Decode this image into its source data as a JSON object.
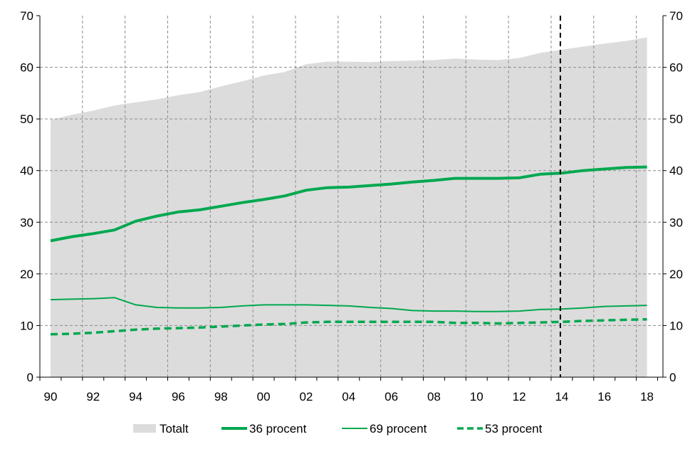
{
  "chart_data": {
    "type": "area",
    "x_tick_labels": [
      "90",
      "92",
      "94",
      "96",
      "98",
      "00",
      "02",
      "04",
      "06",
      "08",
      "10",
      "12",
      "14",
      "16",
      "18"
    ],
    "ylim": [
      0,
      70
    ],
    "y_ticks": [
      0,
      10,
      20,
      30,
      40,
      50,
      60,
      70
    ],
    "y_ticks_right": [
      0,
      10,
      20,
      30,
      40,
      50,
      60,
      70
    ],
    "grid": true,
    "legend_position": "bottom",
    "forecast_divider_x": 2014,
    "x": [
      1990,
      1991,
      1992,
      1993,
      1994,
      1995,
      1996,
      1997,
      1998,
      1999,
      2000,
      2001,
      2002,
      2003,
      2004,
      2005,
      2006,
      2007,
      2008,
      2009,
      2010,
      2011,
      2012,
      2013,
      2014,
      2015,
      2016,
      2017,
      2018
    ],
    "series": [
      {
        "name": "Totalt",
        "style": "area",
        "color": "#dcdcdc",
        "values": [
          49.8,
          50.8,
          51.6,
          52.6,
          53.2,
          53.8,
          54.6,
          55.2,
          56.3,
          57.3,
          58.4,
          59.1,
          60.6,
          61.1,
          61.1,
          61.0,
          61.2,
          61.3,
          61.4,
          61.7,
          61.5,
          61.4,
          61.8,
          62.8,
          63.4,
          64.0,
          64.6,
          65.1,
          65.8
        ]
      },
      {
        "name": "36 procent",
        "style": "thick-line",
        "color": "#00a84f",
        "values": [
          26.4,
          27.2,
          27.8,
          28.5,
          30.2,
          31.2,
          32.0,
          32.4,
          33.1,
          33.8,
          34.4,
          35.1,
          36.2,
          36.7,
          36.8,
          37.1,
          37.4,
          37.8,
          38.1,
          38.5,
          38.5,
          38.5,
          38.6,
          39.3,
          39.5,
          40.0,
          40.3,
          40.6,
          40.7
        ]
      },
      {
        "name": "69 procent",
        "style": "thin-line",
        "color": "#00a84f",
        "values": [
          15.0,
          15.1,
          15.2,
          15.4,
          14.0,
          13.5,
          13.4,
          13.4,
          13.5,
          13.8,
          14.0,
          14.0,
          14.0,
          13.9,
          13.8,
          13.5,
          13.3,
          12.9,
          12.8,
          12.8,
          12.7,
          12.7,
          12.8,
          13.1,
          13.2,
          13.4,
          13.7,
          13.8,
          13.9
        ]
      },
      {
        "name": "53 procent",
        "style": "dashed-line",
        "color": "#00a84f",
        "values": [
          8.3,
          8.4,
          8.6,
          8.9,
          9.2,
          9.4,
          9.5,
          9.6,
          9.8,
          10.0,
          10.2,
          10.3,
          10.6,
          10.7,
          10.7,
          10.7,
          10.7,
          10.7,
          10.7,
          10.5,
          10.5,
          10.4,
          10.5,
          10.6,
          10.7,
          10.9,
          11.0,
          11.1,
          11.2
        ]
      }
    ]
  }
}
